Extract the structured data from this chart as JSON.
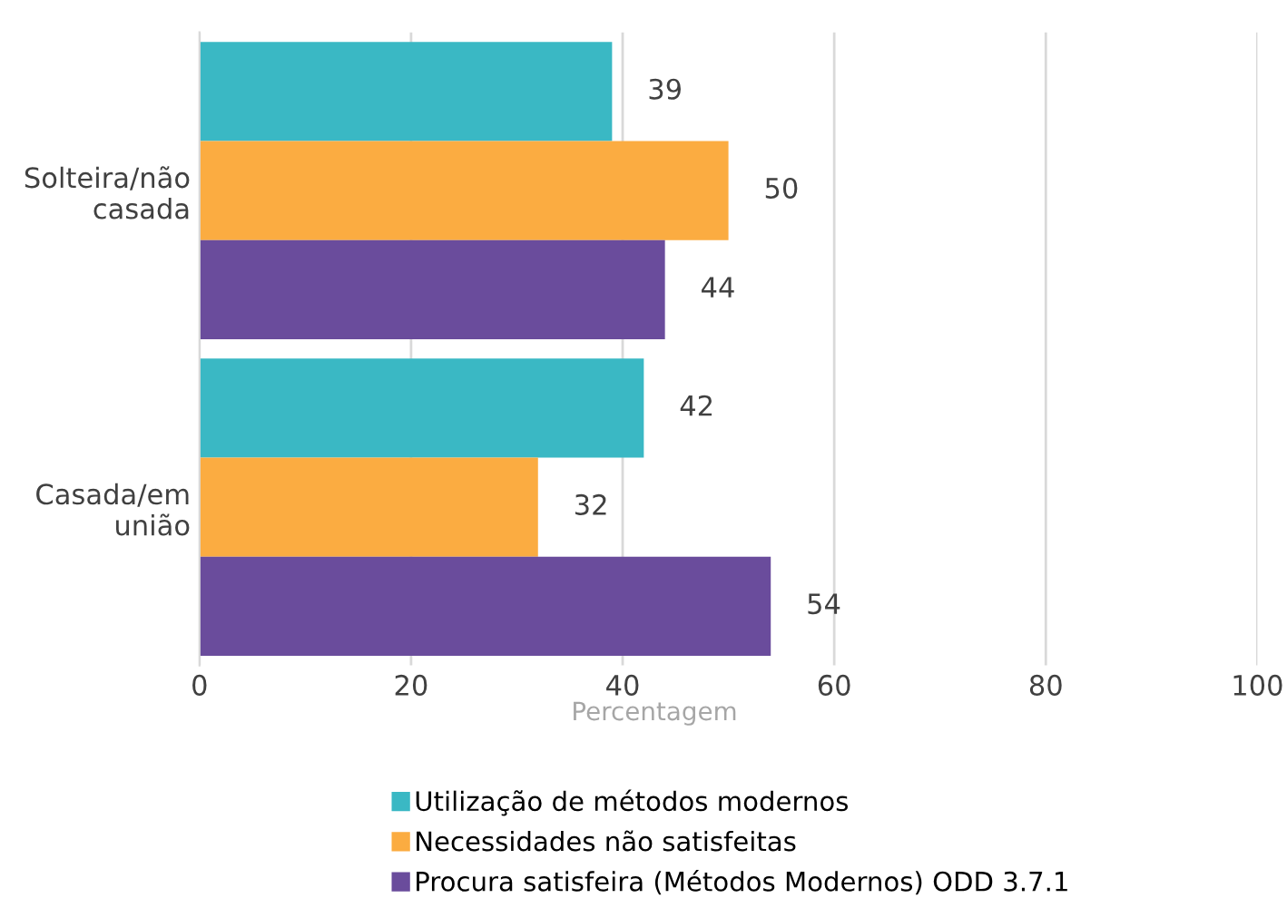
{
  "chart_data": {
    "type": "bar",
    "orientation": "horizontal",
    "xlabel": "Percentagem",
    "categories": [
      "Solteira/não\ncasada",
      "Casada/em\nunião"
    ],
    "series": [
      {
        "name": "Utilização de métodos modernos",
        "color": "#3ab8c4",
        "values": [
          39,
          42
        ]
      },
      {
        "name": "Necessidades não satisfeitas",
        "color": "#fbac41",
        "values": [
          50,
          32
        ]
      },
      {
        "name": "Procura satisfeira (Métodos Modernos) ODD 3.7.1",
        "color": "#6a4c9c",
        "values": [
          44,
          54
        ]
      }
    ],
    "xlim": [
      0,
      100
    ],
    "xticks": [
      0,
      20,
      40,
      60,
      80,
      100
    ],
    "grid": "x",
    "legend": "bottom",
    "data_labels": true
  }
}
